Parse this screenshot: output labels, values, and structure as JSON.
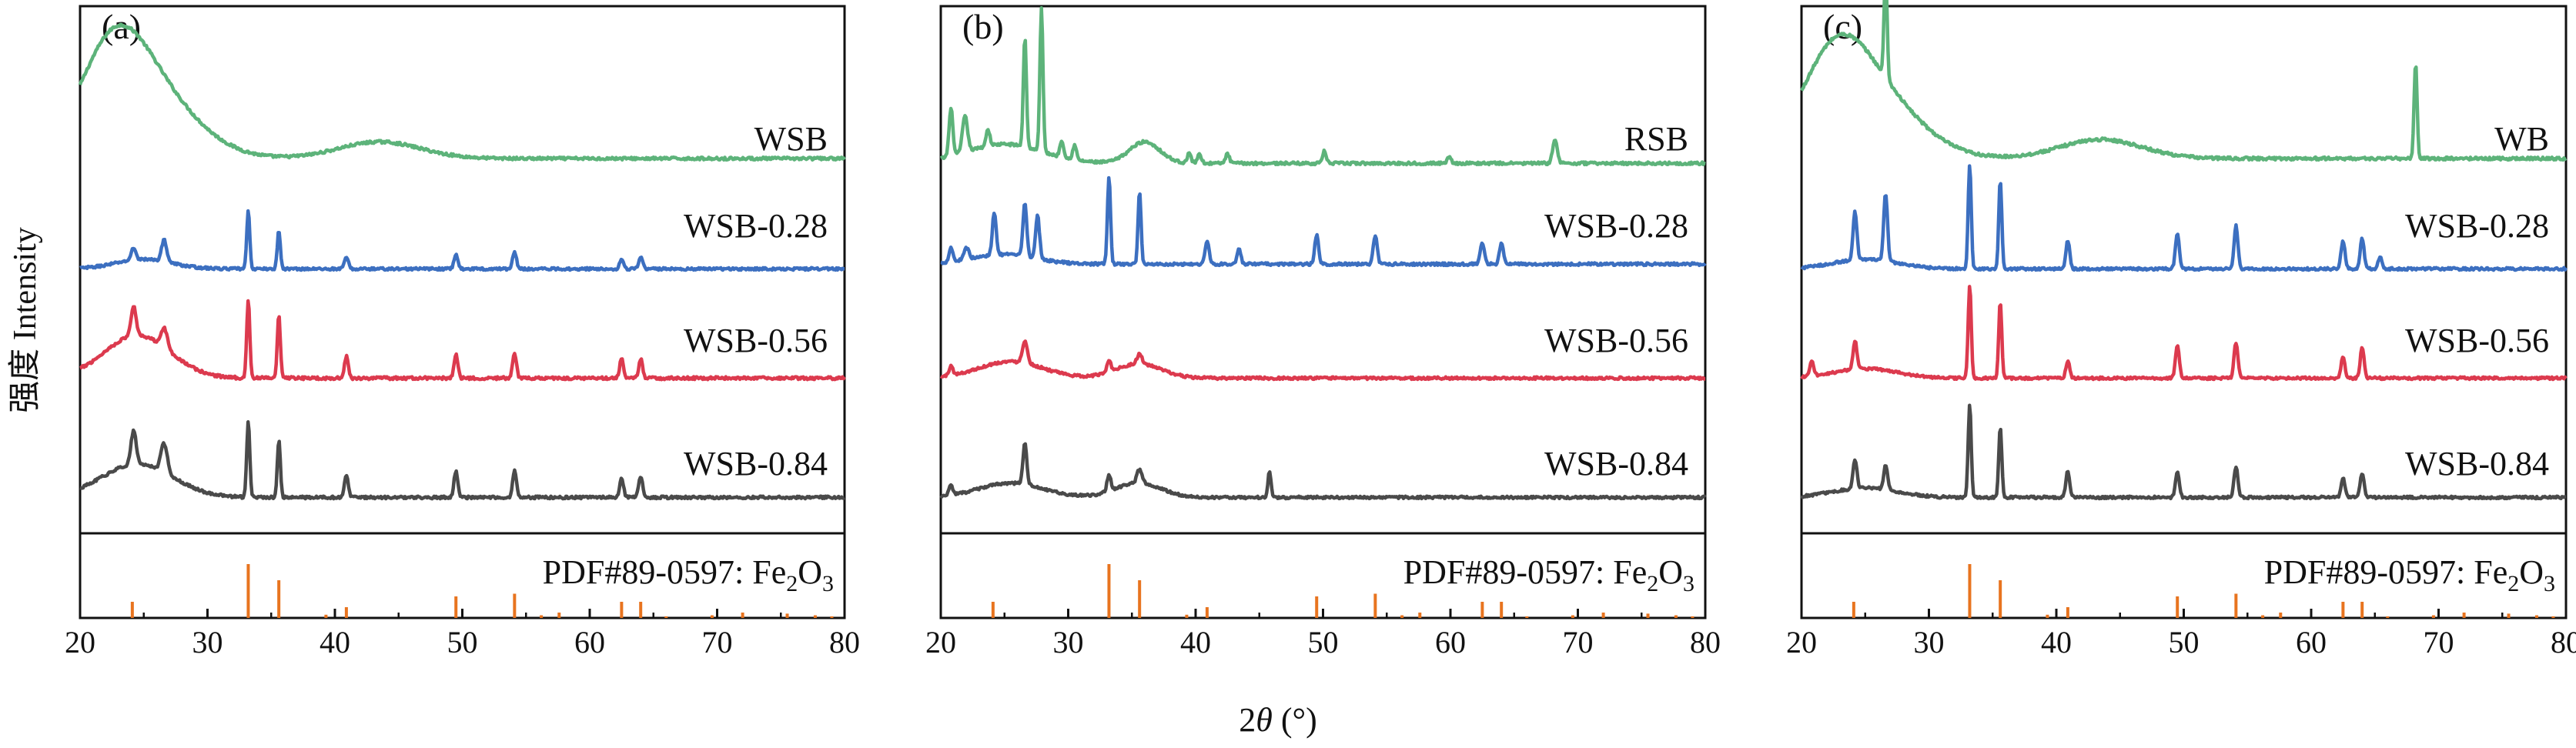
{
  "figure": {
    "ylabel": "强度 Intensity",
    "xlabel_prefix": "2",
    "xlabel_var": "θ",
    "xlabel_unit": " (°)"
  },
  "colors": {
    "top": "#5DB37A",
    "s028": "#3C6FC0",
    "s056": "#DC3A4E",
    "s084": "#4A4A4A",
    "ref": "#E8741F",
    "axis": "#111111"
  },
  "chart_data": [
    {
      "type": "line",
      "panel_label": "(a)",
      "xlim": [
        20,
        80
      ],
      "x_ticks": [
        "20",
        "30",
        "40",
        "50",
        "60",
        "70",
        "80"
      ],
      "ylabel": "强度 Intensity",
      "xlabel": "2θ (°)",
      "series": [
        {
          "name": "WSB",
          "color": "#5DB37A",
          "baseline": 0.5,
          "noise": 0.028,
          "bumps": [
            [
              22.5,
              2.6,
              1.8
            ],
            [
              25.5,
              3.6,
              1.3
            ],
            [
              43.5,
              3.2,
              0.35
            ]
          ],
          "peaks": []
        },
        {
          "name": "WSB-0.28",
          "color": "#3C6FC0",
          "baseline": 0.3,
          "noise": 0.026,
          "bumps": [
            [
              25.0,
              2.2,
              0.2
            ]
          ],
          "peaks": [
            [
              24.2,
              0.18,
              0.25
            ],
            [
              26.6,
              0.2,
              0.45
            ],
            [
              33.2,
              0.12,
              1.2
            ],
            [
              35.6,
              0.12,
              0.8
            ],
            [
              40.9,
              0.15,
              0.25
            ],
            [
              49.5,
              0.15,
              0.3
            ],
            [
              54.1,
              0.15,
              0.35
            ],
            [
              62.5,
              0.15,
              0.2
            ],
            [
              64.0,
              0.15,
              0.25
            ]
          ]
        },
        {
          "name": "WSB-0.56",
          "color": "#DC3A4E",
          "baseline": 0.3,
          "noise": 0.03,
          "bumps": [
            [
              24.5,
              2.6,
              0.9
            ]
          ],
          "peaks": [
            [
              24.2,
              0.2,
              0.6
            ],
            [
              26.6,
              0.25,
              0.4
            ],
            [
              33.2,
              0.12,
              1.65
            ],
            [
              35.6,
              0.12,
              1.3
            ],
            [
              40.9,
              0.15,
              0.45
            ],
            [
              49.5,
              0.15,
              0.5
            ],
            [
              54.1,
              0.15,
              0.5
            ],
            [
              62.5,
              0.15,
              0.4
            ],
            [
              64.0,
              0.15,
              0.4
            ]
          ]
        },
        {
          "name": "WSB-0.84",
          "color": "#4A4A4A",
          "baseline": 0.3,
          "noise": 0.028,
          "bumps": [
            [
              24.5,
              2.8,
              0.7
            ]
          ],
          "peaks": [
            [
              24.2,
              0.2,
              0.7
            ],
            [
              26.6,
              0.25,
              0.6
            ],
            [
              33.2,
              0.12,
              1.6
            ],
            [
              35.6,
              0.12,
              1.2
            ],
            [
              40.9,
              0.15,
              0.45
            ],
            [
              49.5,
              0.15,
              0.55
            ],
            [
              54.1,
              0.15,
              0.55
            ],
            [
              62.5,
              0.15,
              0.4
            ],
            [
              64.0,
              0.15,
              0.45
            ]
          ]
        }
      ],
      "reference": {
        "label_main": "PDF#89-0597: Fe",
        "label_sub1": "2",
        "label_mid": "O",
        "label_sub2": "3",
        "positions": [
          24.1,
          33.2,
          35.6,
          39.3,
          40.9,
          49.5,
          54.1,
          56.2,
          57.6,
          62.5,
          64.0,
          66.0,
          69.6,
          72.0,
          75.5,
          77.7,
          79.0
        ],
        "intensities": [
          0.3,
          1.0,
          0.7,
          0.06,
          0.2,
          0.4,
          0.45,
          0.05,
          0.1,
          0.3,
          0.3,
          0.03,
          0.05,
          0.1,
          0.08,
          0.05,
          0.03
        ]
      }
    },
    {
      "type": "line",
      "panel_label": "(b)",
      "xlim": [
        20,
        80
      ],
      "x_ticks": [
        "20",
        "30",
        "40",
        "50",
        "60",
        "70",
        "80"
      ],
      "ylabel": "",
      "xlabel": "2θ (°)",
      "series": [
        {
          "name": "RSB",
          "color": "#5DB37A",
          "baseline": 0.4,
          "noise": 0.028,
          "bumps": [
            [
              25.0,
              3.0,
              0.4
            ],
            [
              36.0,
              1.2,
              0.45
            ]
          ],
          "peaks": [
            [
              20.8,
              0.15,
              1.0
            ],
            [
              21.9,
              0.2,
              0.75
            ],
            [
              23.7,
              0.15,
              0.35
            ],
            [
              26.6,
              0.12,
              2.3
            ],
            [
              27.9,
              0.12,
              3.0
            ],
            [
              29.5,
              0.15,
              0.35
            ],
            [
              30.5,
              0.15,
              0.3
            ],
            [
              39.5,
              0.15,
              0.2
            ],
            [
              40.3,
              0.15,
              0.2
            ],
            [
              42.5,
              0.15,
              0.2
            ],
            [
              50.1,
              0.15,
              0.25
            ],
            [
              59.9,
              0.15,
              0.15
            ],
            [
              68.2,
              0.18,
              0.5
            ]
          ]
        },
        {
          "name": "WSB-0.28",
          "color": "#3C6FC0",
          "baseline": 0.4,
          "noise": 0.028,
          "bumps": [
            [
              25.0,
              2.5,
              0.2
            ]
          ],
          "peaks": [
            [
              20.8,
              0.15,
              0.3
            ],
            [
              22.0,
              0.2,
              0.25
            ],
            [
              24.2,
              0.15,
              0.9
            ],
            [
              26.6,
              0.15,
              1.1
            ],
            [
              27.6,
              0.15,
              0.9
            ],
            [
              33.2,
              0.12,
              1.85
            ],
            [
              35.6,
              0.12,
              1.5
            ],
            [
              40.9,
              0.15,
              0.5
            ],
            [
              43.4,
              0.15,
              0.3
            ],
            [
              49.5,
              0.15,
              0.6
            ],
            [
              54.1,
              0.15,
              0.6
            ],
            [
              62.5,
              0.15,
              0.45
            ],
            [
              64.0,
              0.15,
              0.45
            ]
          ]
        },
        {
          "name": "WSB-0.56",
          "color": "#DC3A4E",
          "baseline": 0.3,
          "noise": 0.026,
          "bumps": [
            [
              25.5,
              2.5,
              0.35
            ],
            [
              35.5,
              1.8,
              0.3
            ]
          ],
          "peaks": [
            [
              20.8,
              0.15,
              0.2
            ],
            [
              26.6,
              0.2,
              0.45
            ],
            [
              33.2,
              0.15,
              0.25
            ],
            [
              35.6,
              0.2,
              0.2
            ]
          ]
        },
        {
          "name": "WSB-0.84",
          "color": "#4A4A4A",
          "baseline": 0.3,
          "noise": 0.026,
          "bumps": [
            [
              25.5,
              2.5,
              0.3
            ],
            [
              35.5,
              1.8,
              0.3
            ]
          ],
          "peaks": [
            [
              20.8,
              0.15,
              0.2
            ],
            [
              26.6,
              0.15,
              0.85
            ],
            [
              33.2,
              0.15,
              0.35
            ],
            [
              35.6,
              0.2,
              0.3
            ],
            [
              45.8,
              0.12,
              0.55
            ]
          ]
        }
      ],
      "reference": {
        "label_main": "PDF#89-0597: Fe",
        "label_sub1": "2",
        "label_mid": "O",
        "label_sub2": "3",
        "positions": [
          24.1,
          33.2,
          35.6,
          39.3,
          40.9,
          49.5,
          54.1,
          56.2,
          57.6,
          62.5,
          64.0,
          66.0,
          69.6,
          72.0,
          75.5,
          77.7,
          79.0
        ],
        "intensities": [
          0.3,
          1.0,
          0.7,
          0.06,
          0.2,
          0.4,
          0.45,
          0.05,
          0.1,
          0.3,
          0.3,
          0.03,
          0.05,
          0.1,
          0.08,
          0.05,
          0.03
        ]
      }
    },
    {
      "type": "line",
      "panel_label": "(c)",
      "xlim": [
        20,
        80
      ],
      "x_ticks": [
        "20",
        "30",
        "40",
        "50",
        "60",
        "70",
        "80"
      ],
      "ylabel": "",
      "xlabel": "2θ (°)",
      "series": [
        {
          "name": "WB",
          "color": "#5DB37A",
          "baseline": 0.5,
          "noise": 0.03,
          "bumps": [
            [
              22.5,
              2.6,
              1.6
            ],
            [
              25.5,
              3.6,
              1.3
            ],
            [
              43.5,
              3.2,
              0.4
            ]
          ],
          "peaks": [
            [
              26.6,
              0.12,
              2.2
            ],
            [
              68.2,
              0.12,
              2.0
            ]
          ]
        },
        {
          "name": "WSB-0.28",
          "color": "#3C6FC0",
          "baseline": 0.3,
          "noise": 0.026,
          "bumps": [
            [
              25.0,
              2.5,
              0.2
            ]
          ],
          "peaks": [
            [
              24.2,
              0.15,
              1.0
            ],
            [
              26.6,
              0.15,
              1.4
            ],
            [
              33.2,
              0.12,
              2.2
            ],
            [
              35.6,
              0.12,
              1.85
            ],
            [
              40.9,
              0.15,
              0.6
            ],
            [
              49.5,
              0.15,
              0.75
            ],
            [
              54.1,
              0.15,
              0.9
            ],
            [
              62.5,
              0.15,
              0.6
            ],
            [
              64.0,
              0.15,
              0.65
            ],
            [
              65.4,
              0.15,
              0.25
            ]
          ]
        },
        {
          "name": "WSB-0.56",
          "color": "#DC3A4E",
          "baseline": 0.3,
          "noise": 0.026,
          "bumps": [
            [
              25.0,
              2.5,
              0.2
            ]
          ],
          "peaks": [
            [
              20.8,
              0.15,
              0.3
            ],
            [
              24.2,
              0.15,
              0.6
            ],
            [
              33.2,
              0.12,
              1.95
            ],
            [
              35.6,
              0.12,
              1.6
            ],
            [
              40.9,
              0.15,
              0.35
            ],
            [
              49.5,
              0.15,
              0.7
            ],
            [
              54.1,
              0.15,
              0.75
            ],
            [
              62.5,
              0.15,
              0.45
            ],
            [
              64.0,
              0.15,
              0.65
            ]
          ]
        },
        {
          "name": "WSB-0.84",
          "color": "#4A4A4A",
          "baseline": 0.3,
          "noise": 0.026,
          "bumps": [
            [
              25.0,
              2.5,
              0.2
            ]
          ],
          "peaks": [
            [
              24.2,
              0.15,
              0.6
            ],
            [
              26.6,
              0.15,
              0.5
            ],
            [
              33.2,
              0.12,
              1.95
            ],
            [
              35.6,
              0.12,
              1.5
            ],
            [
              40.9,
              0.15,
              0.55
            ],
            [
              49.5,
              0.15,
              0.55
            ],
            [
              54.1,
              0.15,
              0.65
            ],
            [
              62.5,
              0.15,
              0.4
            ],
            [
              64.0,
              0.15,
              0.5
            ]
          ]
        }
      ],
      "reference": {
        "label_main": "PDF#89-0597: Fe",
        "label_sub1": "2",
        "label_mid": "O",
        "label_sub2": "3",
        "positions": [
          24.1,
          33.2,
          35.6,
          39.3,
          40.9,
          49.5,
          54.1,
          56.2,
          57.6,
          62.5,
          64.0,
          66.0,
          69.6,
          72.0,
          75.5,
          77.7,
          79.0
        ],
        "intensities": [
          0.3,
          1.0,
          0.7,
          0.06,
          0.2,
          0.4,
          0.45,
          0.05,
          0.1,
          0.3,
          0.3,
          0.03,
          0.05,
          0.1,
          0.08,
          0.05,
          0.03
        ]
      }
    }
  ]
}
